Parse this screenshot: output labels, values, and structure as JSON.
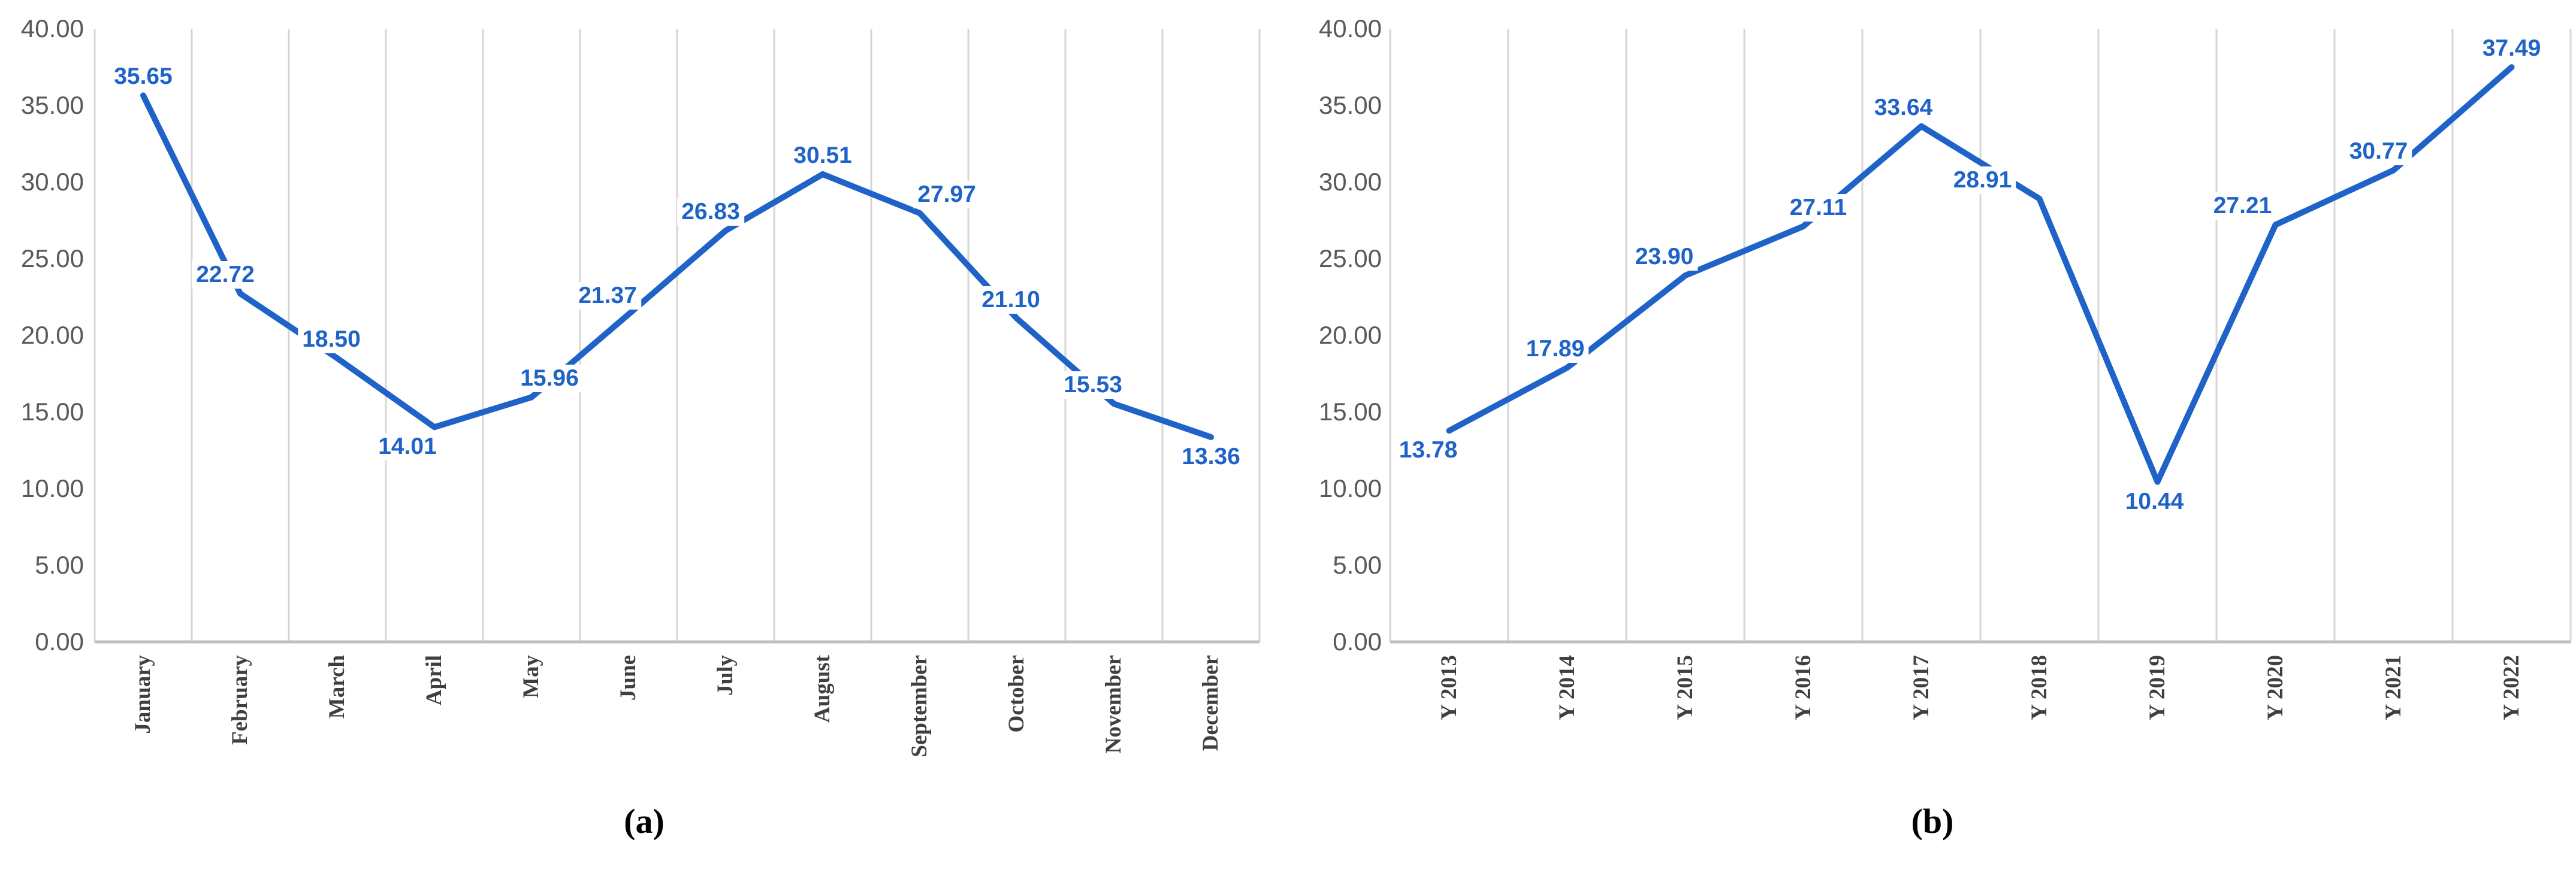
{
  "colors": {
    "series_line": "#1f63c8",
    "data_label_text": "#1f63c8",
    "y_axis_text": "#595959",
    "x_axis_text": "#3f3f3f",
    "gridline": "#d6d6d6",
    "axis_line": "#bfbfbf",
    "background": "#ffffff"
  },
  "chart_data": [
    {
      "type": "line",
      "caption": "(a)",
      "title": "",
      "xlabel": "",
      "ylabel": "",
      "legend": "none",
      "grid": "vertical-only",
      "ylim": [
        0,
        40
      ],
      "y_ticks": [
        "40.00",
        "35.00",
        "30.00",
        "25.00",
        "20.00",
        "15.00",
        "10.00",
        "5.00",
        "0.00"
      ],
      "categories": [
        "January",
        "February",
        "March",
        "April",
        "May",
        "June",
        "July",
        "August",
        "September",
        "October",
        "November",
        "December"
      ],
      "values": [
        35.65,
        22.72,
        18.5,
        14.01,
        15.96,
        21.37,
        26.83,
        30.51,
        27.97,
        21.1,
        15.53,
        13.36
      ],
      "data_labels": [
        "35.65",
        "22.72",
        "18.50",
        "14.01",
        "15.96",
        "21.37",
        "26.83",
        "30.51",
        "27.97",
        "21.10",
        "15.53",
        "13.36"
      ],
      "label_placement": [
        "above",
        "above",
        "above",
        "below",
        "above",
        "above",
        "above",
        "above",
        "above",
        "above",
        "above",
        "below"
      ],
      "label_dx": [
        0,
        -25,
        -10,
        -45,
        30,
        -35,
        -25,
        0,
        45,
        -10,
        -35,
        0
      ]
    },
    {
      "type": "line",
      "caption": "(b)",
      "title": "",
      "xlabel": "",
      "ylabel": "",
      "legend": "none",
      "grid": "vertical-only",
      "ylim": [
        0,
        40
      ],
      "y_ticks": [
        "40.00",
        "35.00",
        "30.00",
        "25.00",
        "20.00",
        "15.00",
        "10.00",
        "5.00",
        "0.00"
      ],
      "categories": [
        "Y 2013",
        "Y 2014",
        "Y 2015",
        "Y 2016",
        "Y 2017",
        "Y 2018",
        "Y 2019",
        "Y 2020",
        "Y 2021",
        "Y 2022"
      ],
      "values": [
        13.78,
        17.89,
        23.9,
        27.11,
        33.64,
        28.91,
        10.44,
        27.21,
        30.77,
        37.49
      ],
      "data_labels": [
        "13.78",
        "17.89",
        "23.90",
        "27.11",
        "33.64",
        "28.91",
        "10.44",
        "27.21",
        "30.77",
        "37.49"
      ],
      "label_placement": [
        "below",
        "above",
        "above",
        "above",
        "above",
        "above",
        "below",
        "above",
        "above",
        "above"
      ],
      "label_dx": [
        -35,
        -20,
        -35,
        25,
        -30,
        -95,
        -5,
        -55,
        -25,
        0
      ]
    }
  ]
}
